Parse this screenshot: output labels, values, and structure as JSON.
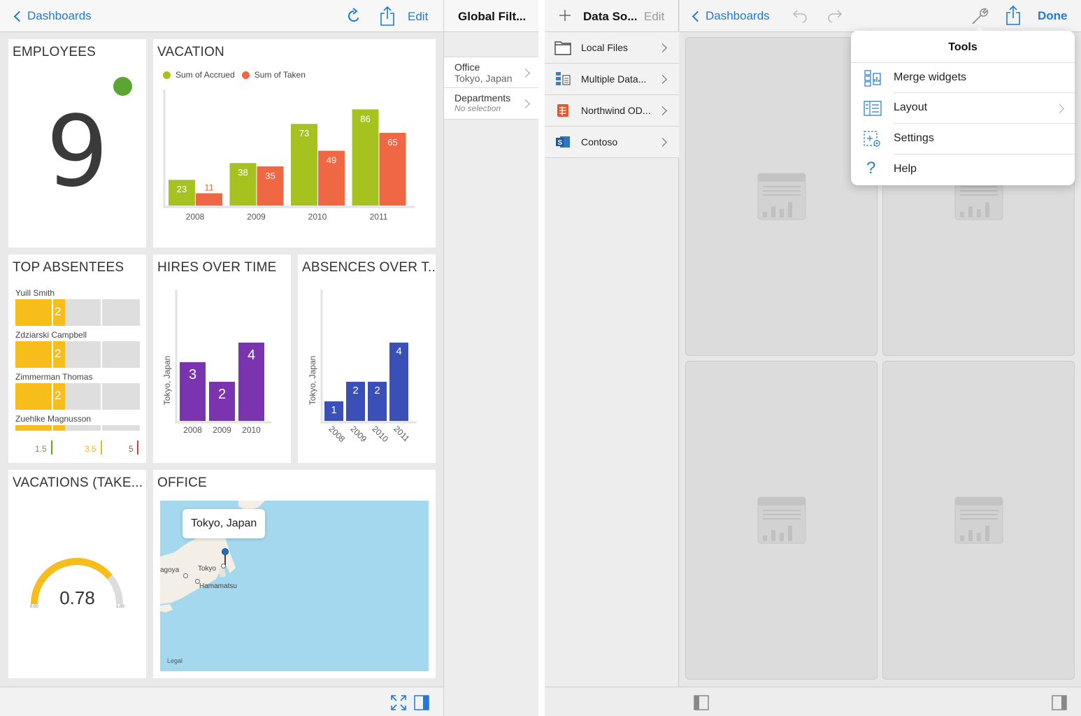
{
  "left": {
    "topbar": {
      "back_label": "Dashboards",
      "edit_label": "Edit"
    },
    "filters": {
      "title": "Global Filt...",
      "items": [
        {
          "label": "Office",
          "value": "Tokyo, Japan"
        },
        {
          "label": "Departments",
          "value": "No selection"
        }
      ]
    },
    "employees": {
      "title": "EMPLOYEES",
      "value": "9",
      "indicator_color": "#5ba632"
    },
    "vacation": {
      "title": "VACATION",
      "legend": [
        "Sum of Accrued",
        "Sum of Taken"
      ]
    },
    "absentees": {
      "title": "TOP ABSENTEES",
      "rows": [
        {
          "name": "Yuill Smith",
          "value": "2"
        },
        {
          "name": "Zdziarski Campbell",
          "value": "2"
        },
        {
          "name": "Zimmerman Thomas",
          "value": "2"
        },
        {
          "name": "Zuehlke Magnusson",
          "value": "2"
        }
      ],
      "scale": [
        "1.5",
        "3.5",
        "5"
      ]
    },
    "hires": {
      "title": "HIRES OVER TIME",
      "ylabel": "Tokyo, Japan"
    },
    "absences": {
      "title": "ABSENCES OVER T...",
      "ylabel": "Tokyo, Japan"
    },
    "gauge": {
      "title": "VACATIONS (TAKE...",
      "value": "0.78",
      "min": "0.00",
      "max": "1.00",
      "level": 0.78
    },
    "office": {
      "title": "OFFICE",
      "callout": "Tokyo, Japan",
      "places": [
        "agoya",
        "Tokyo",
        "Hamamatsu"
      ],
      "legal": "Legal"
    }
  },
  "chart_data": [
    {
      "type": "bar",
      "title": "VACATION",
      "categories": [
        "2008",
        "2009",
        "2010",
        "2011"
      ],
      "series": [
        {
          "name": "Sum of Accrued",
          "values": [
            23,
            38,
            73,
            86
          ],
          "color": "#a5c21f"
        },
        {
          "name": "Sum of Taken",
          "values": [
            11,
            35,
            49,
            65
          ],
          "color": "#ef6843"
        }
      ],
      "ylim": [
        0,
        100
      ]
    },
    {
      "type": "bar",
      "title": "HIRES OVER TIME",
      "categories": [
        "2008",
        "2009",
        "2010"
      ],
      "values": [
        3,
        2,
        4
      ],
      "ylabel": "Tokyo, Japan",
      "color": "#7b34b0",
      "ylim": [
        0,
        5
      ]
    },
    {
      "type": "bar",
      "title": "ABSENCES OVER T...",
      "categories": [
        "2008",
        "2009",
        "2010",
        "2011"
      ],
      "values": [
        1,
        2,
        2,
        4
      ],
      "ylabel": "Tokyo, Japan",
      "color": "#3a4fb8",
      "ylim": [
        0,
        5
      ]
    }
  ],
  "right": {
    "side": {
      "title": "Data So...",
      "edit_label": "Edit",
      "items": [
        {
          "label": "Local Files",
          "icon": "folder-icon"
        },
        {
          "label": "Multiple Data...",
          "icon": "multiple-data-icon"
        },
        {
          "label": "Northwind OD...",
          "icon": "odata-icon"
        },
        {
          "label": "Contoso",
          "icon": "sharepoint-icon"
        }
      ]
    },
    "topbar": {
      "back_label": "Dashboards",
      "done_label": "Done"
    },
    "tools": {
      "title": "Tools",
      "items": [
        {
          "label": "Merge widgets",
          "icon": "merge-widgets-icon"
        },
        {
          "label": "Layout",
          "icon": "layout-icon"
        },
        {
          "label": "Settings",
          "icon": "settings-icon"
        },
        {
          "label": "Help",
          "icon": "help-icon"
        }
      ]
    },
    "accent_color": "#1d7bd4"
  }
}
